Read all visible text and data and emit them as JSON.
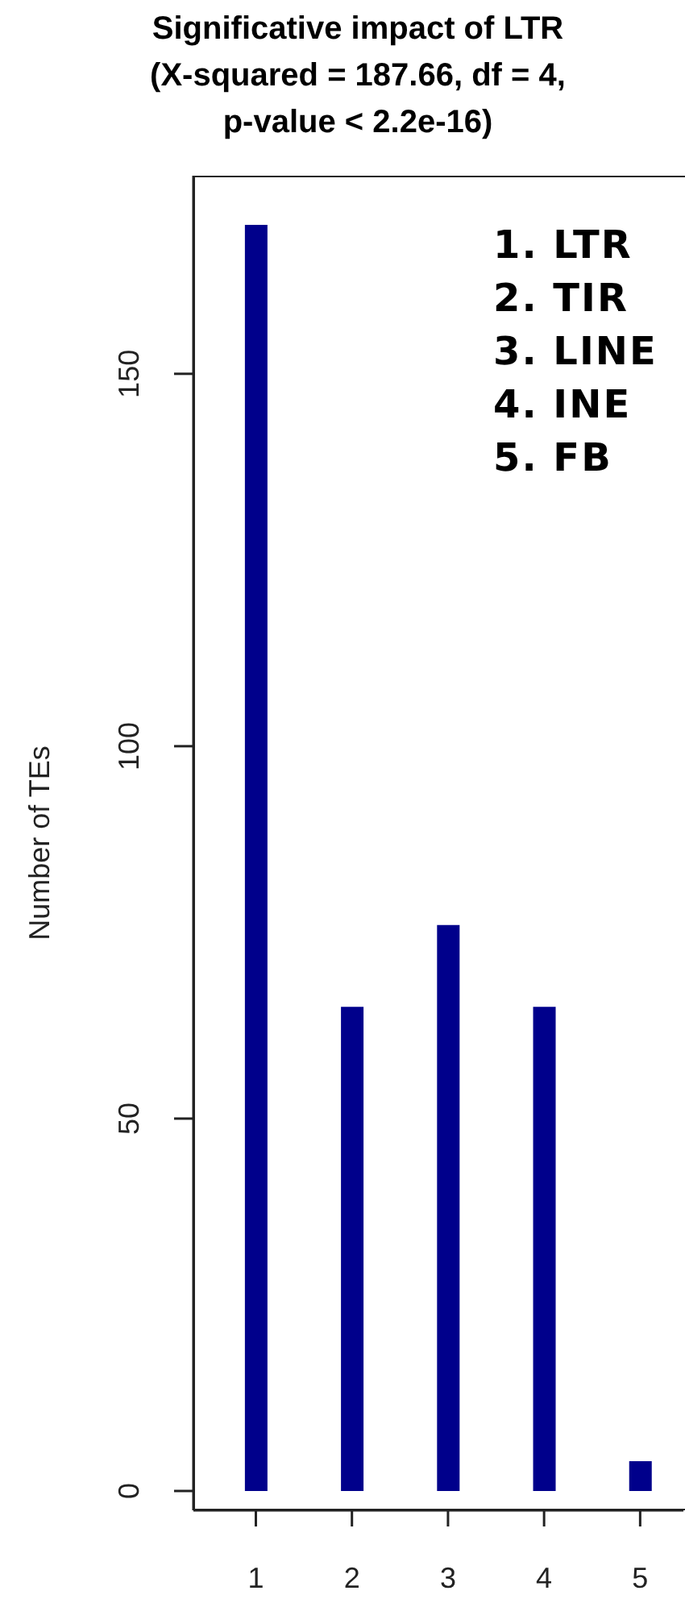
{
  "chart_data": {
    "type": "bar",
    "title": "Significative impact of LTR\n(X-squared = 187.66, df = 4,\np-value < 2.2e-16)",
    "ylabel": "Number of TEs",
    "x": [
      1,
      2,
      3,
      4,
      5
    ],
    "values": [
      170,
      65,
      76,
      65,
      4
    ],
    "color": "#00008b",
    "xlim": [
      0.35,
      5.45
    ],
    "xticks": [
      1,
      2,
      3,
      4,
      5
    ],
    "ylim": [
      -2.6,
      176.6
    ],
    "yticks": [
      0,
      50,
      100,
      150
    ],
    "annotations": [
      "1. LTR",
      "2. TIR",
      "3. LINE",
      "4. INE",
      "5. FB"
    ]
  }
}
